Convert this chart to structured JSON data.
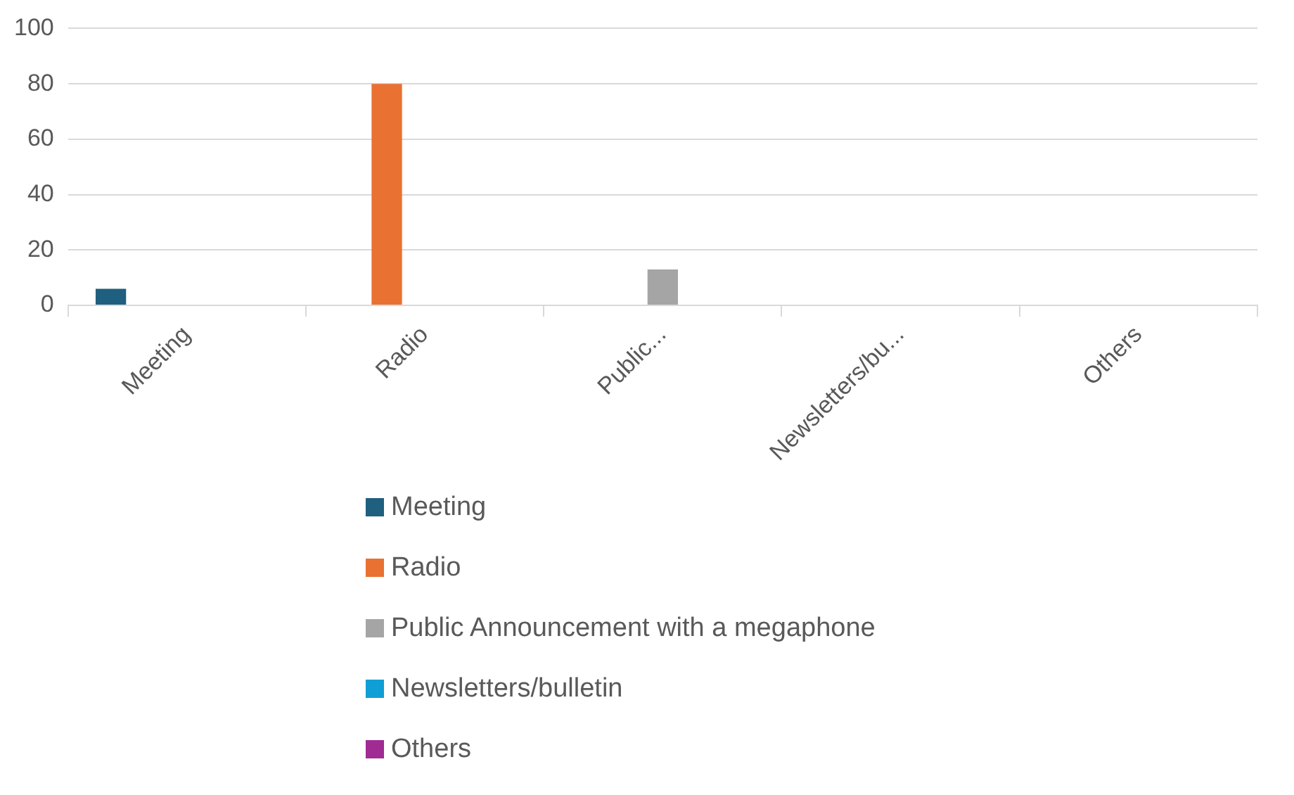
{
  "chart_data": {
    "type": "bar",
    "categories": [
      "Meeting",
      "Radio",
      "Public...",
      "Newsletters/bu...",
      "Others"
    ],
    "series": [
      {
        "name": "Meeting",
        "color": "#1f5f7f",
        "values": [
          6,
          null,
          null,
          null,
          null
        ]
      },
      {
        "name": "Radio",
        "color": "#e97132",
        "values": [
          null,
          80,
          null,
          null,
          null
        ]
      },
      {
        "name": "Public Announcement with a megaphone",
        "color": "#a5a5a5",
        "values": [
          null,
          null,
          13,
          null,
          null
        ]
      },
      {
        "name": "Newsletters/bulletin",
        "color": "#0f9ed5",
        "values": [
          null,
          null,
          null,
          0,
          null
        ]
      },
      {
        "name": "Others",
        "color": "#a02b93",
        "values": [
          null,
          null,
          null,
          null,
          0
        ]
      }
    ],
    "ylim": [
      0,
      100
    ],
    "yticks": [
      0,
      20,
      40,
      60,
      80,
      100
    ],
    "grid": "y",
    "legend": "bottom"
  }
}
